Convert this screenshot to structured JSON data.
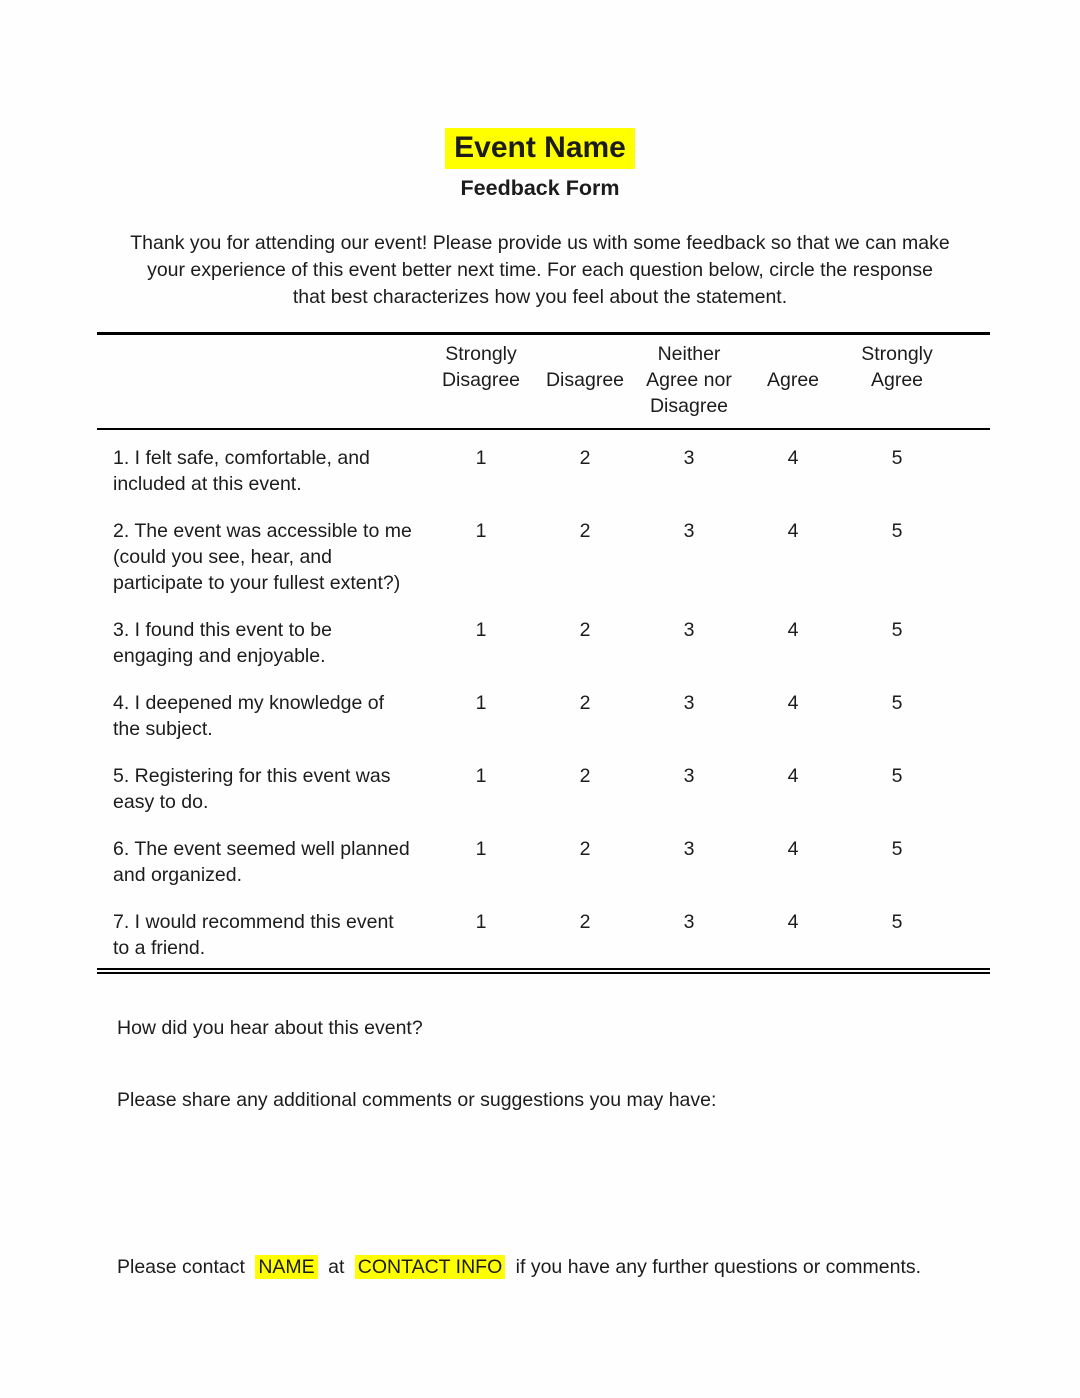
{
  "document": {
    "title": "Event Name",
    "subtitle": "Feedback Form",
    "intro_lines": [
      "Thank you for attending our event! Please provide us with some feedback so that we can make",
      "your experience of this event better next time. For each question below, circle the response",
      "that best characterizes how you feel about the statement."
    ],
    "highlight_color": "#ffff00"
  },
  "table": {
    "columns": [
      "Strongly Disagree",
      "Disagree",
      "Neither Agree nor Disagree",
      "Agree",
      "Strongly Agree"
    ],
    "scale": [
      "1",
      "2",
      "3",
      "4",
      "5"
    ],
    "rows": [
      {
        "lines": [
          "1. I felt safe, comfortable, and",
          "included at this event."
        ]
      },
      {
        "lines": [
          "2. The event was accessible to me",
          "(could you see, hear, and",
          "participate to your fullest extent?)"
        ]
      },
      {
        "lines": [
          "3. I found this event to be",
          "engaging and enjoyable."
        ]
      },
      {
        "lines": [
          "4. I deepened my knowledge of",
          "the subject."
        ]
      },
      {
        "lines": [
          "5. Registering for this event was",
          "easy to do."
        ]
      },
      {
        "lines": [
          "6. The event seemed well planned",
          "and organized."
        ]
      },
      {
        "lines": [
          "7. I would recommend this event",
          "to a friend."
        ]
      }
    ]
  },
  "footer": {
    "hear_question": "How did you hear about this event?",
    "comments_prompt": "Please share any additional comments or suggestions you may have:",
    "contact_prefix": "Please contact",
    "contact_name": "NAME",
    "contact_connector": "at",
    "contact_info": "CONTACT INFO",
    "contact_suffix": "if you have any further questions or comments."
  }
}
